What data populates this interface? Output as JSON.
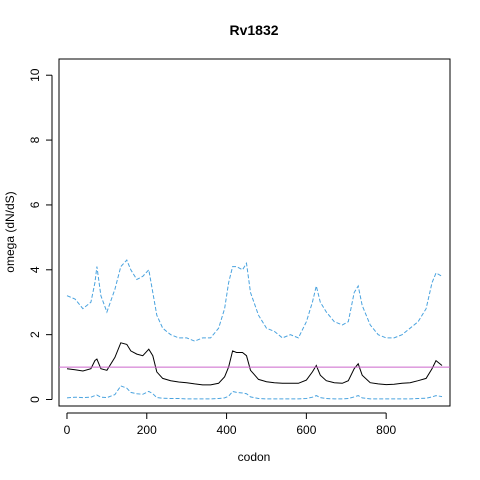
{
  "chart_data": {
    "type": "line",
    "title": "Rv1832",
    "xlabel": "codon",
    "ylabel": "omega (dN/dS)",
    "xlim": [
      -20,
      960
    ],
    "ylim": [
      -0.2,
      10.5
    ],
    "xticks": [
      0,
      200,
      400,
      600,
      800
    ],
    "yticks": [
      0,
      2,
      4,
      6,
      8,
      10
    ],
    "reference_line": {
      "y": 1.0,
      "color": "#cc66cc"
    },
    "series": [
      {
        "style": "upper-ci",
        "color": "#4aa3df",
        "dashed": true,
        "x": [
          0,
          20,
          40,
          60,
          70,
          75,
          85,
          100,
          120,
          135,
          150,
          160,
          175,
          190,
          205,
          215,
          225,
          240,
          260,
          280,
          300,
          320,
          340,
          360,
          380,
          395,
          405,
          415,
          425,
          440,
          450,
          460,
          480,
          500,
          520,
          540,
          560,
          580,
          600,
          615,
          625,
          635,
          650,
          670,
          690,
          705,
          720,
          730,
          740,
          760,
          780,
          800,
          820,
          840,
          860,
          880,
          900,
          915,
          925,
          940
        ],
        "y": [
          3.2,
          3.1,
          2.8,
          3.0,
          3.6,
          4.1,
          3.2,
          2.7,
          3.4,
          4.1,
          4.3,
          4.0,
          3.7,
          3.8,
          4.0,
          3.3,
          2.6,
          2.2,
          2.0,
          1.9,
          1.9,
          1.8,
          1.9,
          1.9,
          2.2,
          2.8,
          3.6,
          4.1,
          4.1,
          4.0,
          4.2,
          3.3,
          2.6,
          2.2,
          2.1,
          1.9,
          2.0,
          1.9,
          2.4,
          3.0,
          3.5,
          3.0,
          2.7,
          2.4,
          2.3,
          2.4,
          3.3,
          3.5,
          2.9,
          2.3,
          2.0,
          1.9,
          1.9,
          2.0,
          2.2,
          2.4,
          2.8,
          3.6,
          3.9,
          3.8
        ]
      },
      {
        "style": "mean",
        "color": "#000000",
        "dashed": false,
        "x": [
          0,
          20,
          40,
          60,
          70,
          75,
          85,
          100,
          120,
          135,
          150,
          160,
          175,
          190,
          205,
          215,
          225,
          240,
          260,
          280,
          300,
          320,
          340,
          360,
          380,
          395,
          405,
          415,
          425,
          440,
          450,
          460,
          480,
          500,
          520,
          540,
          560,
          580,
          600,
          615,
          625,
          635,
          650,
          670,
          690,
          705,
          720,
          730,
          740,
          760,
          780,
          800,
          820,
          840,
          860,
          880,
          900,
          915,
          925,
          940
        ],
        "y": [
          0.95,
          0.92,
          0.88,
          0.95,
          1.2,
          1.25,
          0.95,
          0.9,
          1.3,
          1.75,
          1.7,
          1.5,
          1.4,
          1.35,
          1.55,
          1.35,
          0.85,
          0.65,
          0.58,
          0.54,
          0.52,
          0.48,
          0.45,
          0.45,
          0.5,
          0.7,
          1.0,
          1.5,
          1.45,
          1.45,
          1.35,
          0.9,
          0.62,
          0.55,
          0.52,
          0.5,
          0.5,
          0.5,
          0.6,
          0.85,
          1.05,
          0.75,
          0.58,
          0.52,
          0.5,
          0.58,
          0.95,
          1.1,
          0.75,
          0.52,
          0.48,
          0.46,
          0.47,
          0.5,
          0.52,
          0.58,
          0.65,
          0.95,
          1.2,
          1.05
        ]
      },
      {
        "style": "lower-ci",
        "color": "#4aa3df",
        "dashed": true,
        "x": [
          0,
          20,
          40,
          60,
          70,
          75,
          85,
          100,
          120,
          135,
          150,
          160,
          175,
          190,
          205,
          215,
          225,
          240,
          260,
          280,
          300,
          320,
          340,
          360,
          380,
          395,
          405,
          415,
          425,
          440,
          450,
          460,
          480,
          500,
          520,
          540,
          560,
          580,
          600,
          615,
          625,
          635,
          650,
          670,
          690,
          705,
          720,
          730,
          740,
          760,
          780,
          800,
          820,
          840,
          860,
          880,
          900,
          915,
          925,
          940
        ],
        "y": [
          0.05,
          0.07,
          0.06,
          0.07,
          0.12,
          0.14,
          0.07,
          0.06,
          0.15,
          0.42,
          0.35,
          0.22,
          0.18,
          0.16,
          0.25,
          0.18,
          0.06,
          0.04,
          0.03,
          0.03,
          0.02,
          0.02,
          0.02,
          0.02,
          0.03,
          0.05,
          0.1,
          0.25,
          0.22,
          0.2,
          0.18,
          0.08,
          0.03,
          0.02,
          0.02,
          0.02,
          0.02,
          0.02,
          0.03,
          0.07,
          0.12,
          0.06,
          0.03,
          0.02,
          0.02,
          0.03,
          0.08,
          0.12,
          0.05,
          0.02,
          0.02,
          0.02,
          0.02,
          0.02,
          0.02,
          0.03,
          0.04,
          0.08,
          0.12,
          0.09
        ]
      }
    ]
  }
}
